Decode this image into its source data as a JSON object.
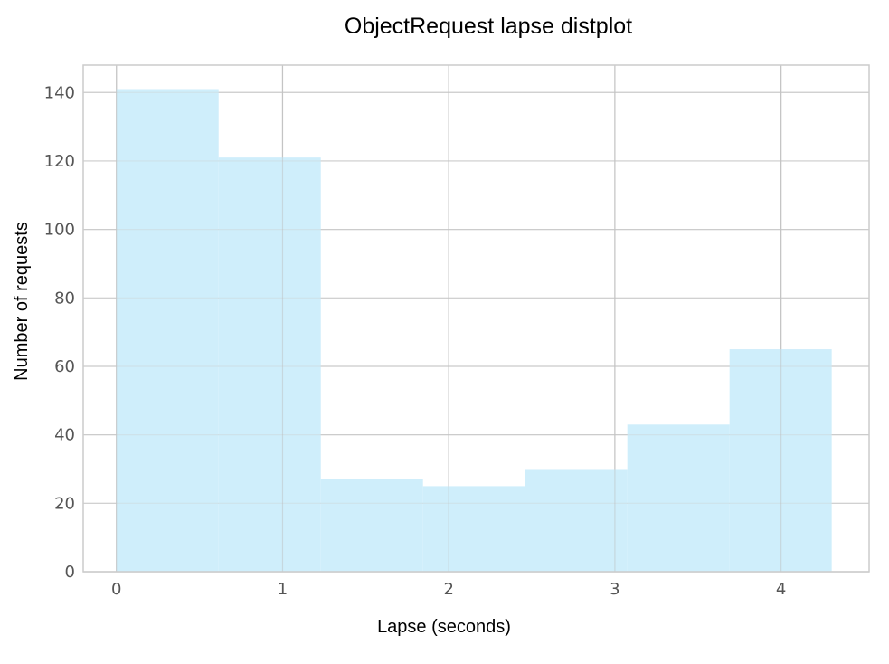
{
  "chart_data": {
    "type": "bar",
    "title": "ObjectRequest lapse distplot",
    "xlabel": "Lapse (seconds)",
    "ylabel": "Number of requests",
    "bin_edges": [
      0.0,
      0.615,
      1.23,
      1.845,
      2.46,
      3.075,
      3.69,
      4.305
    ],
    "values": [
      141,
      121,
      27,
      25,
      30,
      43,
      65
    ],
    "xlim": [
      -0.2,
      4.53
    ],
    "ylim": [
      0,
      148
    ],
    "xticks": [
      0,
      1,
      2,
      3,
      4
    ],
    "yticks": [
      0,
      20,
      40,
      60,
      80,
      100,
      120,
      140
    ],
    "grid": true,
    "bar_color": "#cfeefb"
  }
}
